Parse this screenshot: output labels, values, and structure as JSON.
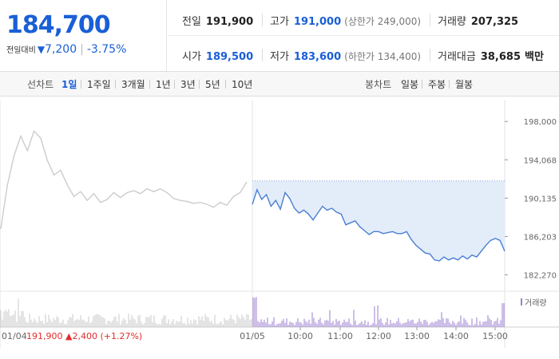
{
  "quote": {
    "price": "184,700",
    "change_label": "전일대비",
    "change_arrow": "▼",
    "change_value": "7,200",
    "change_pct": "-3.75%",
    "prev_close_label": "전일",
    "prev_close": "191,900",
    "open_label": "시가",
    "open": "189,500",
    "high_label": "고가",
    "high": "191,000",
    "upper_limit": "(상한가 249,000)",
    "low_label": "저가",
    "low": "183,600",
    "lower_limit": "(하한가 134,400)",
    "volume_label": "거래량",
    "volume": "207,325",
    "value_label": "거래대금",
    "value": "38,685",
    "value_unit": "백만"
  },
  "tabs": {
    "line_head": "선차트",
    "line_items": [
      "1일",
      "1주일",
      "3개월",
      "1년",
      "3년",
      "5년",
      "10년"
    ],
    "candle_head": "봉차트",
    "candle_items": [
      "일봉",
      "주봉",
      "월봉"
    ]
  },
  "colors": {
    "accent_blue": "#1a5fd6",
    "rise_red": "#e22b2b",
    "fill_blue": "#e3ecf9",
    "prev_gray": "#cccccc",
    "volume_purple": "#9b7fd0"
  },
  "chart_data": {
    "type": "line",
    "ylim": [
      181000,
      199000
    ],
    "yticks": [
      "198,000",
      "194,068",
      "190,135",
      "186,203",
      "182,270"
    ],
    "ytick_values": [
      198000,
      194068,
      190135,
      186203,
      182270
    ],
    "xticks": [
      "01/04",
      "01/05",
      "10:00",
      "11:00",
      "12:00",
      "13:00",
      "14:00",
      "15:00"
    ],
    "prev_day_label": "01/04",
    "prev_day_close": "191,900",
    "prev_day_change_arrow": "▲",
    "prev_day_change": "2,400",
    "prev_day_change_pct": "(+1.27%)",
    "reference_level": 191900,
    "volume_label": "거래량",
    "series": [
      {
        "values": [
          187000,
          191500,
          194500,
          196500,
          195000,
          197000,
          196300,
          194000,
          192500,
          193000,
          191500,
          190300,
          190800,
          189900,
          190600,
          189700,
          190000,
          190700,
          190200,
          190700,
          190900,
          190600,
          191100,
          190800,
          191100,
          190700,
          190100,
          189900,
          189800,
          189600,
          189700,
          189500,
          189200,
          189700,
          189400,
          190300,
          190700,
          191800
        ]
      },
      {
        "values": [
          189500,
          191000,
          190000,
          190500,
          189300,
          189900,
          189000,
          190700,
          190100,
          189100,
          188600,
          188900,
          188500,
          187900,
          188600,
          189300,
          188900,
          189100,
          188700,
          188500,
          187400,
          187600,
          187800,
          187200,
          186800,
          186400,
          186700,
          186700,
          186500,
          186600,
          186700,
          186500,
          186500,
          186700,
          185900,
          185300,
          184900,
          184500,
          184400,
          183800,
          183700,
          184100,
          183800,
          184000,
          183800,
          184200,
          183900,
          184300,
          184100,
          184700,
          185300,
          185800,
          186000,
          185800,
          184700
        ]
      }
    ]
  }
}
